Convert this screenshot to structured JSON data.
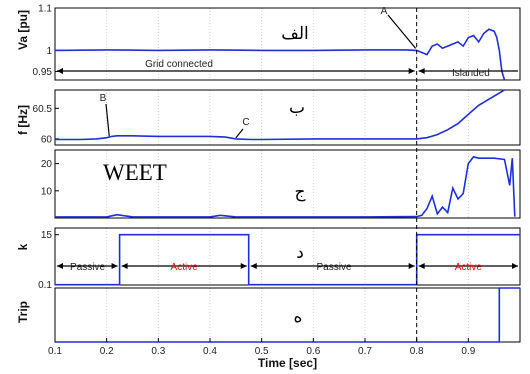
{
  "chart_data": {
    "type": "line",
    "xlabel": "Time [sec]",
    "xlim": [
      0.1,
      1.0
    ],
    "x_ticks": [
      0.1,
      0.2,
      0.3,
      0.4,
      0.5,
      0.6,
      0.7,
      0.8,
      0.9
    ],
    "x_tick_labels": [
      "0.1",
      "0.2",
      "0.3",
      "0.4",
      "0.5",
      "0.6",
      "0.7",
      "0.8",
      "0.9"
    ],
    "event_time": 0.8,
    "line_color": "#1f2fd6",
    "panels": [
      {
        "id": "va",
        "ylabel": "Va [pu]",
        "title_label": "الف",
        "ylim": [
          0.93,
          1.1
        ],
        "y_ticks": [
          0.95,
          1,
          1.1
        ],
        "y_tick_labels": [
          "0.95",
          "1",
          "1.1"
        ],
        "series": [
          {
            "x": [
              0.1,
              0.2,
              0.3,
              0.4,
              0.5,
              0.6,
              0.7,
              0.78,
              0.8,
              0.81,
              0.82,
              0.83,
              0.84,
              0.85,
              0.86,
              0.87,
              0.88,
              0.89,
              0.9,
              0.91,
              0.92,
              0.93,
              0.94,
              0.95,
              0.955,
              0.96,
              0.965,
              0.97
            ],
            "y": [
              1.0,
              1.001,
              1.0,
              1.001,
              1.0,
              1.0,
              1.001,
              1.001,
              1.0,
              0.995,
              0.99,
              1.01,
              1.015,
              1.005,
              1.01,
              1.015,
              1.02,
              1.01,
              1.03,
              1.035,
              1.02,
              1.04,
              1.05,
              1.045,
              1.03,
              1.0,
              0.95,
              0.93
            ]
          }
        ],
        "labels": {
          "grid_connected": "Grid connected",
          "islanded": "Islanded",
          "point_a": "A"
        }
      },
      {
        "id": "f",
        "ylabel": "f [Hz]",
        "title_label": "ب",
        "ylim": [
          59.9,
          60.8
        ],
        "y_ticks": [
          60,
          60.5
        ],
        "y_tick_labels": [
          "60",
          "60.5"
        ],
        "series": [
          {
            "x": [
              0.1,
              0.15,
              0.18,
              0.2,
              0.21,
              0.22,
              0.25,
              0.3,
              0.35,
              0.4,
              0.43,
              0.45,
              0.48,
              0.5,
              0.6,
              0.7,
              0.8,
              0.82,
              0.84,
              0.86,
              0.88,
              0.9,
              0.92,
              0.94,
              0.96,
              0.97
            ],
            "y": [
              59.99,
              59.99,
              60.0,
              60.02,
              60.04,
              60.05,
              60.05,
              60.04,
              60.04,
              60.04,
              60.03,
              60.0,
              59.99,
              59.99,
              60.0,
              60.0,
              60.0,
              60.02,
              60.07,
              60.15,
              60.25,
              60.4,
              60.55,
              60.65,
              60.75,
              60.8
            ]
          }
        ],
        "labels": {
          "point_b": "B",
          "point_c": "C"
        }
      },
      {
        "id": "weet",
        "ylabel": "WEET",
        "title_label": "ج",
        "ylim": [
          0,
          25
        ],
        "y_ticks": [
          10,
          20
        ],
        "y_tick_labels": [
          "10",
          "20"
        ],
        "series": [
          {
            "x": [
              0.1,
              0.2,
              0.22,
              0.25,
              0.3,
              0.4,
              0.42,
              0.45,
              0.5,
              0.6,
              0.7,
              0.8,
              0.81,
              0.82,
              0.83,
              0.84,
              0.85,
              0.86,
              0.87,
              0.88,
              0.89,
              0.9,
              0.91,
              0.92,
              0.95,
              0.97,
              0.98,
              0.985,
              0.99
            ],
            "y": [
              0.4,
              0.4,
              1.2,
              0.4,
              0.4,
              0.4,
              1.0,
              0.4,
              0.4,
              0.4,
              0.4,
              0.5,
              1.0,
              3.5,
              8.0,
              1.5,
              4.0,
              2.0,
              11.0,
              7.0,
              9.0,
              20.0,
              22.5,
              22.0,
              22.0,
              21.5,
              12.0,
              22.0,
              0.5
            ]
          }
        ]
      },
      {
        "id": "k",
        "ylabel": "k",
        "title_label": "د",
        "ylim": [
          0,
          17
        ],
        "y_ticks": [
          0.1,
          15
        ],
        "y_tick_labels": [
          "0.1",
          "15"
        ],
        "series": [
          {
            "x": [
              0.1,
              0.225,
              0.225,
              0.475,
              0.475,
              0.8,
              0.8,
              1.0
            ],
            "y": [
              0.1,
              0.1,
              15,
              15,
              0.1,
              0.1,
              15,
              15
            ]
          }
        ],
        "labels": {
          "passive_1": "Passive",
          "active_1": "Active",
          "passive_2": "Passive",
          "active_2": "Active"
        }
      },
      {
        "id": "trip",
        "ylabel": "Trip",
        "title_label": "ه",
        "ylim": [
          0,
          1
        ],
        "y_ticks": [],
        "y_tick_labels": [],
        "series": [
          {
            "x": [
              0.1,
              0.96,
              0.96,
              1.0
            ],
            "y": [
              0,
              0,
              1,
              1
            ]
          }
        ]
      }
    ]
  }
}
